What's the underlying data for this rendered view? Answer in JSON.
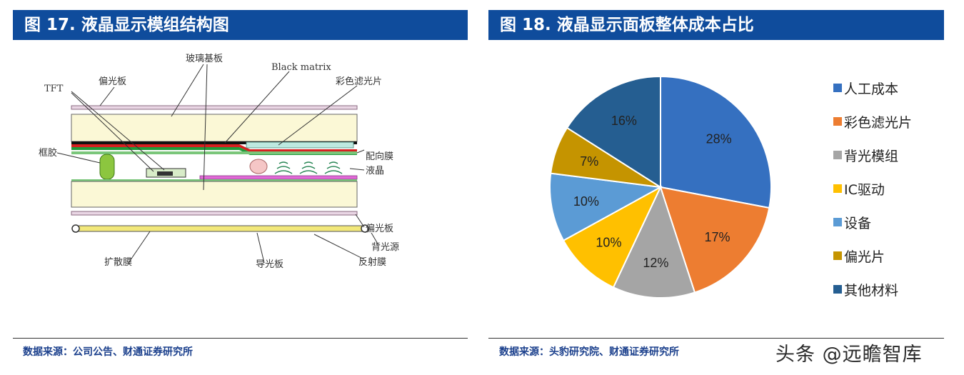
{
  "left_panel": {
    "title": "图 17. 液晶显示模组结构图",
    "source": "数据来源：公司公告、财通证券研究所",
    "labels": {
      "glass": "玻璃基板",
      "black_matrix": "Black matrix",
      "polarizer_top": "偏光板",
      "tft": "TFT",
      "color_filter": "彩色滤光片",
      "frame_glue": "框胶",
      "alignment_film": "配向膜",
      "liquid_crystal": "液晶",
      "polarizer_bottom": "偏光板",
      "backlight": "背光源",
      "diffuser": "扩散膜",
      "light_guide": "导光板",
      "reflector": "反射膜"
    }
  },
  "right_panel": {
    "title": "图 18. 液晶显示面板整体成本占比",
    "source": "数据来源：头豹研究院、财通证券研究所"
  },
  "watermark": "头条 @远瞻智库",
  "chart_data": {
    "type": "pie",
    "title": "",
    "legend_position": "right",
    "series": [
      {
        "name": "人工成本",
        "value": 28,
        "label": "28%",
        "color": "#3570C0"
      },
      {
        "name": "彩色滤光片",
        "value": 17,
        "label": "17%",
        "color": "#ED7D31"
      },
      {
        "name": "背光模组",
        "value": 12,
        "label": "12%",
        "color": "#A5A5A5"
      },
      {
        "name": "IC驱动",
        "value": 10,
        "label": "10%",
        "color": "#FFC000"
      },
      {
        "name": "设备",
        "value": 10,
        "label": "10%",
        "color": "#5B9BD5"
      },
      {
        "name": "偏光片",
        "value": 7,
        "label": "7%",
        "color": "#C59400"
      },
      {
        "name": "其他材料",
        "value": 16,
        "label": "16%",
        "color": "#255E91"
      }
    ]
  }
}
